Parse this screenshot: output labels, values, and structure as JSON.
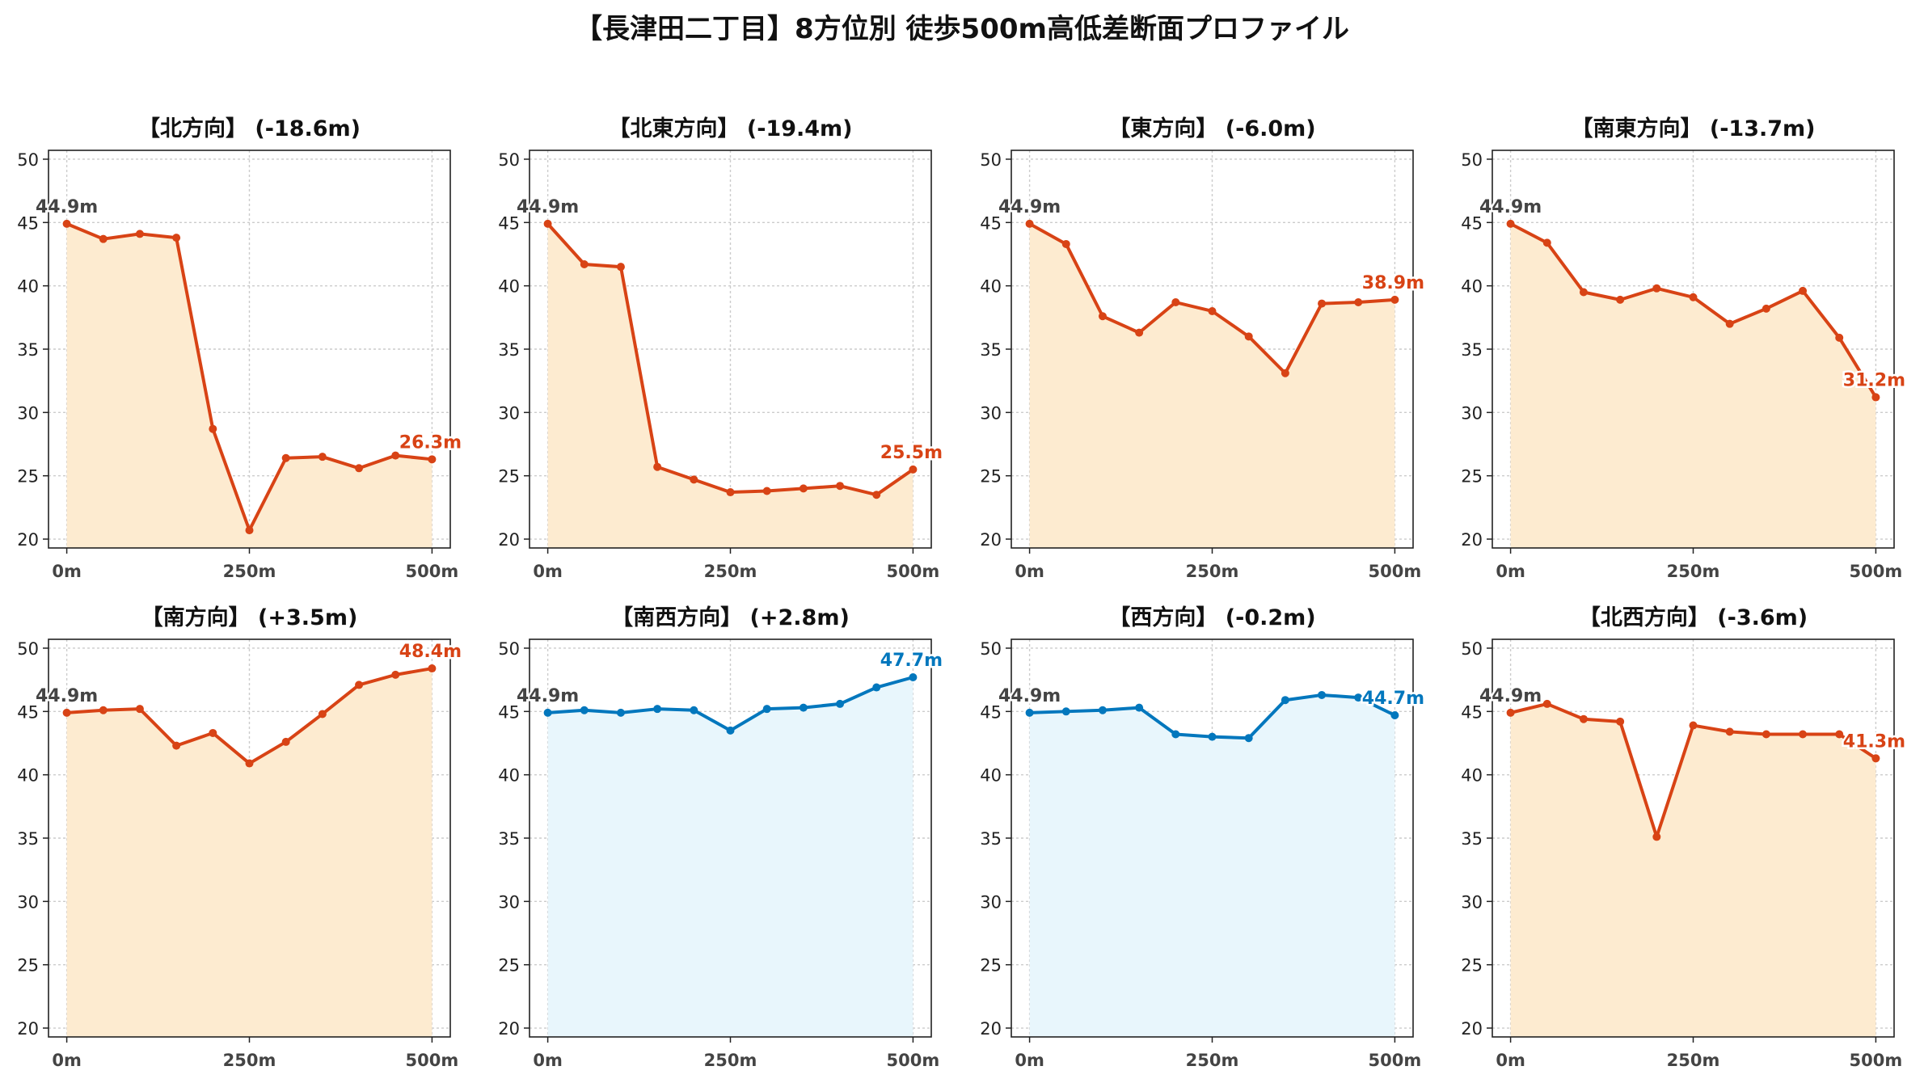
{
  "title": "【長津田二丁目】8方位別 徒歩500m高低差断面プロファイル",
  "colors": {
    "down_line": "#d84315",
    "down_fill": "#fdebd0",
    "up_line": "#0277bd",
    "up_fill": "#e8f6fc",
    "start_label": "#444444"
  },
  "chart_data": [
    {
      "type": "area",
      "title": "【北方向】 (-18.6m)",
      "x": [
        0,
        50,
        100,
        150,
        200,
        250,
        300,
        350,
        400,
        450,
        500
      ],
      "values": [
        44.9,
        43.7,
        44.1,
        43.8,
        28.7,
        20.7,
        26.4,
        26.5,
        25.6,
        26.6,
        26.3
      ],
      "xticks": [
        "0m",
        "250m",
        "500m"
      ],
      "yticks": [
        20,
        25,
        30,
        35,
        40,
        45,
        50
      ],
      "ylim": [
        19.3,
        50.7
      ],
      "start_label": "44.9m",
      "end_label": "26.3m",
      "style": "down",
      "grid": true
    },
    {
      "type": "area",
      "title": "【北東方向】 (-19.4m)",
      "x": [
        0,
        50,
        100,
        150,
        200,
        250,
        300,
        350,
        400,
        450,
        500
      ],
      "values": [
        44.9,
        41.7,
        41.5,
        25.7,
        24.7,
        23.7,
        23.8,
        24.0,
        24.2,
        23.5,
        25.5
      ],
      "xticks": [
        "0m",
        "250m",
        "500m"
      ],
      "yticks": [
        20,
        25,
        30,
        35,
        40,
        45,
        50
      ],
      "ylim": [
        19.3,
        50.7
      ],
      "start_label": "44.9m",
      "end_label": "25.5m",
      "style": "down",
      "grid": true
    },
    {
      "type": "area",
      "title": "【東方向】 (-6.0m)",
      "x": [
        0,
        50,
        100,
        150,
        200,
        250,
        300,
        350,
        400,
        450,
        500
      ],
      "values": [
        44.9,
        43.3,
        37.6,
        36.3,
        38.7,
        38.0,
        36.0,
        33.1,
        38.6,
        38.7,
        38.9
      ],
      "xticks": [
        "0m",
        "250m",
        "500m"
      ],
      "yticks": [
        20,
        25,
        30,
        35,
        40,
        45,
        50
      ],
      "ylim": [
        19.3,
        50.7
      ],
      "start_label": "44.9m",
      "end_label": "38.9m",
      "style": "down",
      "grid": true
    },
    {
      "type": "area",
      "title": "【南東方向】 (-13.7m)",
      "x": [
        0,
        50,
        100,
        150,
        200,
        250,
        300,
        350,
        400,
        450,
        500
      ],
      "values": [
        44.9,
        43.4,
        39.5,
        38.9,
        39.8,
        39.1,
        37.0,
        38.2,
        39.6,
        35.9,
        31.2
      ],
      "xticks": [
        "0m",
        "250m",
        "500m"
      ],
      "yticks": [
        20,
        25,
        30,
        35,
        40,
        45,
        50
      ],
      "ylim": [
        19.3,
        50.7
      ],
      "start_label": "44.9m",
      "end_label": "31.2m",
      "style": "down",
      "grid": true
    },
    {
      "type": "area",
      "title": "【南方向】 (+3.5m)",
      "x": [
        0,
        50,
        100,
        150,
        200,
        250,
        300,
        350,
        400,
        450,
        500
      ],
      "values": [
        44.9,
        45.1,
        45.2,
        42.3,
        43.3,
        40.9,
        42.6,
        44.8,
        47.1,
        47.9,
        48.4
      ],
      "xticks": [
        "0m",
        "250m",
        "500m"
      ],
      "yticks": [
        20,
        25,
        30,
        35,
        40,
        45,
        50
      ],
      "ylim": [
        19.3,
        50.7
      ],
      "start_label": "44.9m",
      "end_label": "48.4m",
      "style": "down",
      "grid": true
    },
    {
      "type": "area",
      "title": "【南西方向】 (+2.8m)",
      "x": [
        0,
        50,
        100,
        150,
        200,
        250,
        300,
        350,
        400,
        450,
        500
      ],
      "values": [
        44.9,
        45.1,
        44.9,
        45.2,
        45.1,
        43.5,
        45.2,
        45.3,
        45.6,
        46.9,
        47.7
      ],
      "xticks": [
        "0m",
        "250m",
        "500m"
      ],
      "yticks": [
        20,
        25,
        30,
        35,
        40,
        45,
        50
      ],
      "ylim": [
        19.3,
        50.7
      ],
      "start_label": "44.9m",
      "end_label": "47.7m",
      "style": "up",
      "grid": true
    },
    {
      "type": "area",
      "title": "【西方向】 (-0.2m)",
      "x": [
        0,
        50,
        100,
        150,
        200,
        250,
        300,
        350,
        400,
        450,
        500
      ],
      "values": [
        44.9,
        45.0,
        45.1,
        45.3,
        43.2,
        43.0,
        42.9,
        45.9,
        46.3,
        46.1,
        44.7
      ],
      "xticks": [
        "0m",
        "250m",
        "500m"
      ],
      "yticks": [
        20,
        25,
        30,
        35,
        40,
        45,
        50
      ],
      "ylim": [
        19.3,
        50.7
      ],
      "start_label": "44.9m",
      "end_label": "44.7m",
      "style": "up",
      "grid": true
    },
    {
      "type": "area",
      "title": "【北西方向】 (-3.6m)",
      "x": [
        0,
        50,
        100,
        150,
        200,
        250,
        300,
        350,
        400,
        450,
        500
      ],
      "values": [
        44.9,
        45.6,
        44.4,
        44.2,
        35.1,
        43.9,
        43.4,
        43.2,
        43.2,
        43.2,
        41.3
      ],
      "xticks": [
        "0m",
        "250m",
        "500m"
      ],
      "yticks": [
        20,
        25,
        30,
        35,
        40,
        45,
        50
      ],
      "ylim": [
        19.3,
        50.7
      ],
      "start_label": "44.9m",
      "end_label": "41.3m",
      "style": "down",
      "grid": true
    }
  ]
}
